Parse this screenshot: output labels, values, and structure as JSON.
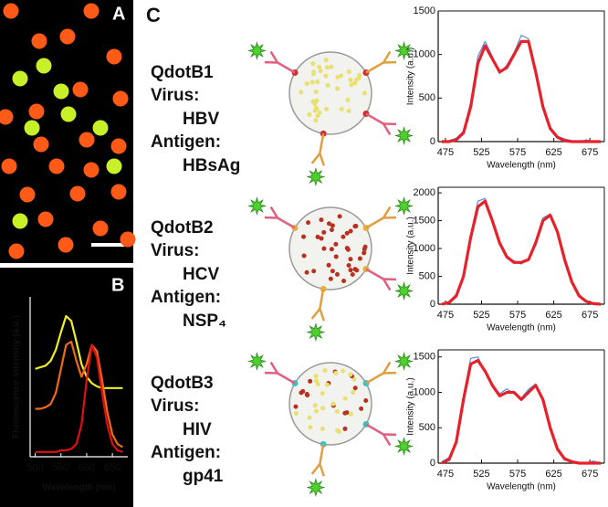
{
  "panels": [
    "A",
    "B",
    "C"
  ],
  "particles": [
    {
      "name": "QdotB1",
      "virus_label": "Virus:",
      "virus": "HBV",
      "antigen_label": "Antigen:",
      "antigen": "HBsAg"
    },
    {
      "name": "QdotB2",
      "virus_label": "Virus:",
      "virus": "HCV",
      "antigen_label": "Antigen:",
      "antigen": "NSP₄"
    },
    {
      "name": "QdotB3",
      "virus_label": "Virus:",
      "virus": "HIV",
      "antigen_label": "Antigen:",
      "antigen": "gp41"
    }
  ],
  "chart_data": [
    {
      "type": "line",
      "xlabel": "Wavelength (nm)",
      "ylabel": "Fluorescence Intensity (a.u.)",
      "x": [
        500,
        510,
        520,
        530,
        540,
        550,
        560,
        570,
        580,
        590,
        600,
        610,
        620,
        630,
        640,
        650,
        660,
        670
      ],
      "xlim": [
        490,
        680
      ],
      "xticks": [
        500,
        550,
        600,
        650
      ],
      "ylim": [
        0,
        1
      ],
      "series": [
        {
          "color": "#f0f020",
          "values": [
            0.55,
            0.56,
            0.57,
            0.6,
            0.67,
            0.78,
            0.88,
            0.85,
            0.72,
            0.58,
            0.5,
            0.46,
            0.44,
            0.43,
            0.43,
            0.43,
            0.43,
            0.43
          ]
        },
        {
          "color": "#f06a18",
          "values": [
            0.3,
            0.3,
            0.31,
            0.33,
            0.4,
            0.55,
            0.7,
            0.72,
            0.6,
            0.5,
            0.58,
            0.7,
            0.66,
            0.48,
            0.28,
            0.14,
            0.08,
            0.06
          ]
        },
        {
          "color": "#e01010",
          "values": [
            0.03,
            0.03,
            0.03,
            0.03,
            0.03,
            0.04,
            0.04,
            0.05,
            0.08,
            0.2,
            0.48,
            0.7,
            0.62,
            0.4,
            0.2,
            0.08,
            0.04,
            0.03
          ]
        }
      ]
    },
    {
      "type": "line",
      "xlabel": "Wavelength (nm)",
      "ylabel": "Intensity (a.u.)",
      "x": [
        470,
        480,
        490,
        500,
        510,
        520,
        530,
        540,
        550,
        560,
        570,
        580,
        590,
        600,
        610,
        620,
        630,
        640,
        650,
        660,
        670,
        680,
        690
      ],
      "xlim": [
        465,
        695
      ],
      "xticks": [
        475,
        525,
        575,
        625,
        675
      ],
      "ylim": [
        0,
        1500
      ],
      "yticks": [
        0,
        500,
        1000,
        1500
      ],
      "series": [
        {
          "color": "#4a8fe0",
          "values": [
            0,
            10,
            40,
            120,
            450,
            980,
            1150,
            980,
            780,
            880,
            1020,
            1220,
            1180,
            780,
            420,
            170,
            60,
            30,
            10,
            0,
            20,
            0,
            0
          ]
        },
        {
          "color": "#e8202a",
          "values": [
            0,
            0,
            20,
            100,
            400,
            900,
            1100,
            950,
            800,
            850,
            1000,
            1150,
            1150,
            800,
            400,
            150,
            50,
            10,
            0,
            0,
            0,
            0,
            0
          ]
        }
      ]
    },
    {
      "type": "line",
      "xlabel": "Wavelength (nm)",
      "ylabel": "Intensity (a.u.)",
      "x": [
        470,
        480,
        490,
        500,
        510,
        520,
        530,
        540,
        550,
        560,
        570,
        580,
        590,
        600,
        610,
        620,
        630,
        640,
        650,
        660,
        670,
        680,
        690
      ],
      "xlim": [
        465,
        695
      ],
      "xticks": [
        475,
        525,
        575,
        625,
        675
      ],
      "ylim": [
        0,
        2100
      ],
      "yticks": [
        0,
        500,
        1000,
        1500,
        2000
      ],
      "series": [
        {
          "color": "#4a8fe0",
          "values": [
            0,
            50,
            180,
            520,
            1250,
            1850,
            1900,
            1520,
            1080,
            830,
            780,
            720,
            820,
            1150,
            1550,
            1620,
            1280,
            780,
            420,
            170,
            60,
            20,
            10
          ]
        },
        {
          "color": "#e8202a",
          "values": [
            0,
            30,
            150,
            500,
            1200,
            1750,
            1850,
            1500,
            1100,
            850,
            750,
            750,
            800,
            1100,
            1500,
            1600,
            1300,
            800,
            400,
            150,
            50,
            10,
            0
          ]
        }
      ]
    },
    {
      "type": "line",
      "xlabel": "Wavelength (nm)",
      "ylabel": "Intensity (a.u.)",
      "x": [
        470,
        480,
        490,
        500,
        510,
        520,
        530,
        540,
        550,
        560,
        570,
        580,
        590,
        600,
        610,
        620,
        630,
        640,
        650,
        660,
        670,
        680,
        690
      ],
      "xlim": [
        465,
        695
      ],
      "xticks": [
        475,
        525,
        575,
        625,
        675
      ],
      "ylim": [
        0,
        1600
      ],
      "yticks": [
        0,
        500,
        1000,
        1500
      ],
      "series": [
        {
          "color": "#4a8fe0",
          "values": [
            20,
            80,
            320,
            950,
            1480,
            1500,
            1280,
            1120,
            980,
            1050,
            980,
            920,
            1040,
            1120,
            880,
            520,
            220,
            80,
            30,
            10,
            0,
            30,
            0
          ]
        },
        {
          "color": "#e8202a",
          "values": [
            0,
            50,
            300,
            900,
            1400,
            1450,
            1300,
            1100,
            950,
            1000,
            1000,
            900,
            1000,
            1100,
            900,
            500,
            200,
            60,
            20,
            0,
            0,
            0,
            0
          ]
        }
      ]
    }
  ]
}
